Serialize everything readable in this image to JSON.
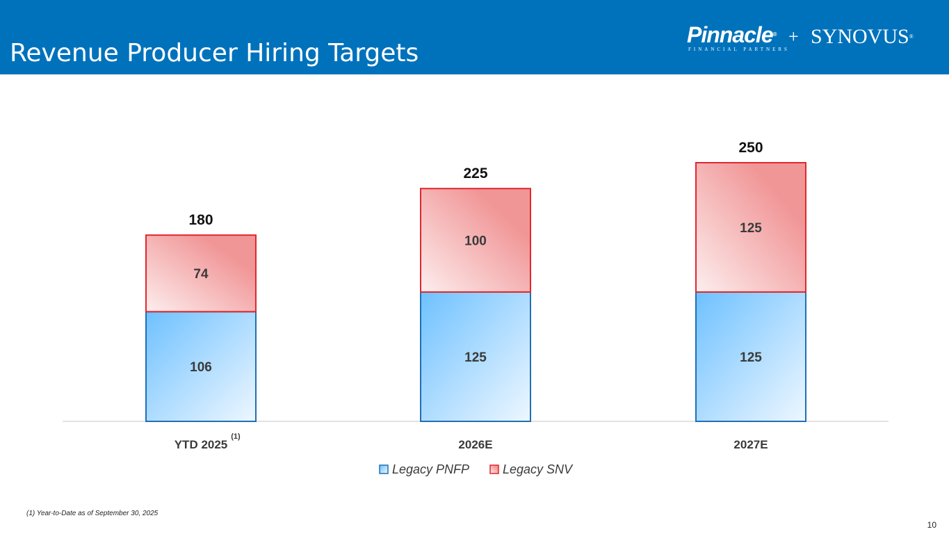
{
  "page": {
    "title": "Revenue Producer Hiring Targets",
    "logo_left": "Pinnacle",
    "logo_left_mark": "®",
    "logo_left_sub": "FINANCIAL PARTNERS",
    "logo_plus": "+",
    "logo_right": "SYNOVUS",
    "logo_right_mark": "®",
    "footnote": "(1) Year-to-Date as of September 30, 2025",
    "page_number": "10"
  },
  "colors": {
    "header": "#0072bc",
    "pnfp_stroke": "#1f6fb5",
    "pnfp_fill_dark": "#6ec1ff",
    "pnfp_fill_light": "#eef7ff",
    "snv_stroke": "#e1262d",
    "snv_fill_dark": "#f19697",
    "snv_fill_light": "#fdeeee"
  },
  "chart_data": {
    "type": "bar",
    "stacked": true,
    "categories": [
      "YTD 2025",
      "2026E",
      "2027E"
    ],
    "category_superscripts": [
      "(1)",
      "",
      ""
    ],
    "series": [
      {
        "name": "Legacy PNFP",
        "values": [
          106,
          125,
          125
        ]
      },
      {
        "name": "Legacy SNV",
        "values": [
          74,
          100,
          125
        ]
      }
    ],
    "totals": [
      180,
      225,
      250
    ],
    "ylim": [
      0,
      250
    ],
    "grid": false,
    "legend": "bottom"
  }
}
